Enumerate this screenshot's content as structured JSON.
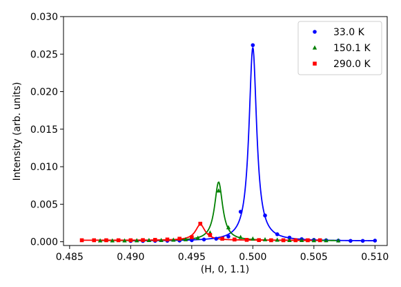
{
  "chart_data": {
    "type": "scatter",
    "title": "",
    "xlabel": "(H, 0, 1.1)",
    "ylabel": "Intensity (arb. units)",
    "xlim": [
      0.4845,
      0.511
    ],
    "ylim": [
      -0.0005,
      0.03
    ],
    "xticks": [
      "0.485",
      "0.490",
      "0.495",
      "0.500",
      "0.505",
      "0.510"
    ],
    "yticks": [
      "0.000",
      "0.005",
      "0.010",
      "0.015",
      "0.020",
      "0.025",
      "0.030"
    ],
    "grid": false,
    "legend_position": "top-right",
    "series": [
      {
        "name": "33.0 K",
        "color": "#0000ff",
        "marker": "circle",
        "x": [
          0.49,
          0.491,
          0.492,
          0.493,
          0.494,
          0.495,
          0.496,
          0.497,
          0.498,
          0.499,
          0.5,
          0.501,
          0.502,
          0.503,
          0.504,
          0.505,
          0.506,
          0.507,
          0.508,
          0.509,
          0.51
        ],
        "y": [
          0.0001,
          0.0001,
          0.00012,
          0.00013,
          0.00015,
          0.0002,
          0.0003,
          0.0004,
          0.0007,
          0.004,
          0.0262,
          0.0035,
          0.001,
          0.00055,
          0.00035,
          0.00025,
          0.0002,
          0.00015,
          0.00012,
          0.00012,
          0.00015
        ],
        "fit": {
          "center": 0.5,
          "hwhm": 0.00038,
          "amplitude": 0.0258,
          "background": 0.0001
        }
      },
      {
        "name": "150.1 K",
        "color": "#008000",
        "marker": "triangle",
        "x": [
          0.4875,
          0.4885,
          0.4895,
          0.4905,
          0.4915,
          0.4925,
          0.4935,
          0.4945,
          0.4955,
          0.4965,
          0.4972,
          0.498,
          0.499,
          0.5,
          0.501,
          0.502,
          0.503,
          0.504,
          0.505,
          0.506,
          0.507
        ],
        "y": [
          0.00015,
          0.00015,
          0.00015,
          0.00017,
          0.0002,
          0.0002,
          0.00025,
          0.0003,
          0.0005,
          0.0012,
          0.0068,
          0.0019,
          0.0006,
          0.0004,
          0.0003,
          0.00025,
          0.0002,
          0.0002,
          0.00018,
          0.00018,
          0.00015
        ],
        "fit": {
          "center": 0.4972,
          "hwhm": 0.0004,
          "amplitude": 0.0078,
          "background": 0.00015
        }
      },
      {
        "name": "290.0 K",
        "color": "#ff0000",
        "marker": "square",
        "x": [
          0.486,
          0.487,
          0.488,
          0.489,
          0.49,
          0.491,
          0.492,
          0.493,
          0.494,
          0.495,
          0.4957,
          0.4965,
          0.4975,
          0.4985,
          0.4995,
          0.5005,
          0.5015,
          0.5025,
          0.5035,
          0.5045,
          0.5055
        ],
        "y": [
          0.0002,
          0.0002,
          0.0002,
          0.0002,
          0.0002,
          0.00022,
          0.00025,
          0.0003,
          0.0004,
          0.0006,
          0.0024,
          0.0009,
          0.0004,
          0.0003,
          0.00025,
          0.00022,
          0.0002,
          0.0002,
          0.0002,
          0.0002,
          0.0002
        ],
        "fit": {
          "center": 0.4957,
          "hwhm": 0.00048,
          "amplitude": 0.0021,
          "background": 0.0002
        }
      }
    ]
  }
}
